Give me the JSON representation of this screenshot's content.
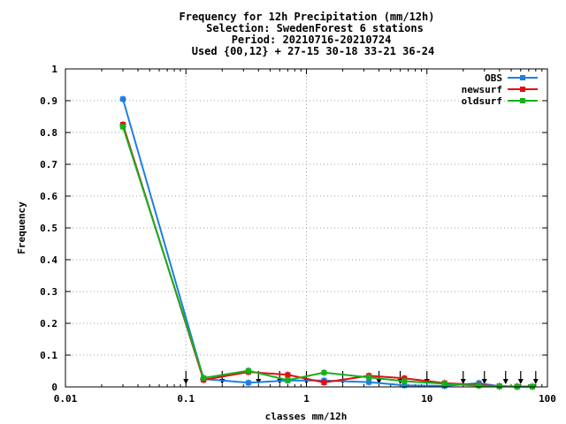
{
  "chart_data": {
    "type": "line",
    "title_lines": [
      "Frequency  for 12h Precipitation (mm/12h)",
      "Selection: SwedenForest      6 stations",
      "Period: 20210716-20210724",
      "Used {00,12} + 27-15 30-18 33-21 36-24"
    ],
    "xlabel": "classes mm/12h",
    "ylabel": "Frequency",
    "x_scale": "log",
    "xlim": [
      0.01,
      100
    ],
    "ylim": [
      0,
      1
    ],
    "x_ticks": [
      0.01,
      0.1,
      1,
      10,
      100
    ],
    "x_tick_labels": [
      "0.01",
      "0.1",
      "1",
      "10",
      "100"
    ],
    "y_ticks": [
      0,
      0.1,
      0.2,
      0.3,
      0.4,
      0.5,
      0.6,
      0.7,
      0.8,
      0.9,
      1
    ],
    "y_tick_labels": [
      "0",
      "0.1",
      "0.2",
      "0.3",
      "0.4",
      "0.5",
      "0.6",
      "0.7",
      "0.8",
      "0.9",
      "1"
    ],
    "grid": true,
    "legend_position": "top-right",
    "x": [
      0.03,
      0.14,
      0.33,
      0.7,
      1.4,
      3.3,
      6.5,
      14,
      27,
      40,
      56,
      75
    ],
    "series": [
      {
        "name": "OBS",
        "color": "#1f7fe0",
        "values": [
          0.905,
          0.025,
          0.013,
          0.02,
          0.02,
          0.015,
          0.005,
          0.003,
          0.012,
          0.002,
          0.001,
          0.001
        ]
      },
      {
        "name": "newsurf",
        "color": "#e01010",
        "values": [
          0.825,
          0.022,
          0.047,
          0.038,
          0.014,
          0.035,
          0.027,
          0.012,
          0.006,
          0.002,
          0.001,
          0.001
        ]
      },
      {
        "name": "oldsurf",
        "color": "#16b01c",
        "values": [
          0.818,
          0.028,
          0.051,
          0.021,
          0.045,
          0.03,
          0.018,
          0.01,
          0.004,
          0.002,
          0.001,
          0.001
        ]
      }
    ],
    "class_markers": [
      0.1,
      0.2,
      0.4,
      0.6,
      1,
      2,
      4,
      6,
      10,
      20,
      30,
      45,
      60,
      80
    ]
  }
}
